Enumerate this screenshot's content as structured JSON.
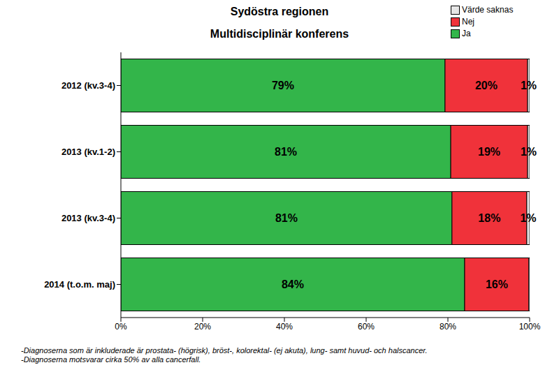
{
  "chart_data": {
    "type": "bar",
    "title": "Sydöstra regionen",
    "subtitle": "Multidisciplinär konferens",
    "orientation": "horizontal",
    "stacked": true,
    "data_labels": true,
    "legend": "top-right",
    "grid": false,
    "categories": [
      "2012 (kv.3-4)",
      "2013 (kv.1-2)",
      "2013 (kv.3-4)",
      "2014 (t.o.m. maj)"
    ],
    "series": [
      {
        "name": "Ja",
        "color": "#33b54a",
        "values": [
          79.3,
          80.7,
          81.0,
          84.1
        ],
        "value_labels": [
          "79%",
          "81%",
          "81%",
          "84%"
        ]
      },
      {
        "name": "Nej",
        "color": "#f0323a",
        "values": [
          20.2,
          18.8,
          18.3,
          15.7
        ],
        "value_labels": [
          "20%",
          "19%",
          "18%",
          "16%"
        ]
      },
      {
        "name": "Värde saknas",
        "color": "#e6e6e6",
        "values": [
          0.5,
          0.5,
          0.7,
          0.2
        ],
        "value_labels": [
          "1%",
          "1%",
          "1%",
          null
        ]
      }
    ],
    "xlim": [
      0,
      100
    ],
    "xticks": [
      {
        "value": 0,
        "label": "0%"
      },
      {
        "value": 20,
        "label": "20%"
      },
      {
        "value": 40,
        "label": "40%"
      },
      {
        "value": 60,
        "label": "60%"
      },
      {
        "value": 80,
        "label": "80%"
      },
      {
        "value": 100,
        "label": "100%"
      }
    ],
    "annotations": [
      "-Diagnoserna som är inkluderade är prostata- (högrisk), bröst-, kolorektal- (ej akuta), lung- samt huvud- och halscancer.",
      "-Diagnoserna motsvarar cirka 50% av alla cancerfall."
    ]
  }
}
